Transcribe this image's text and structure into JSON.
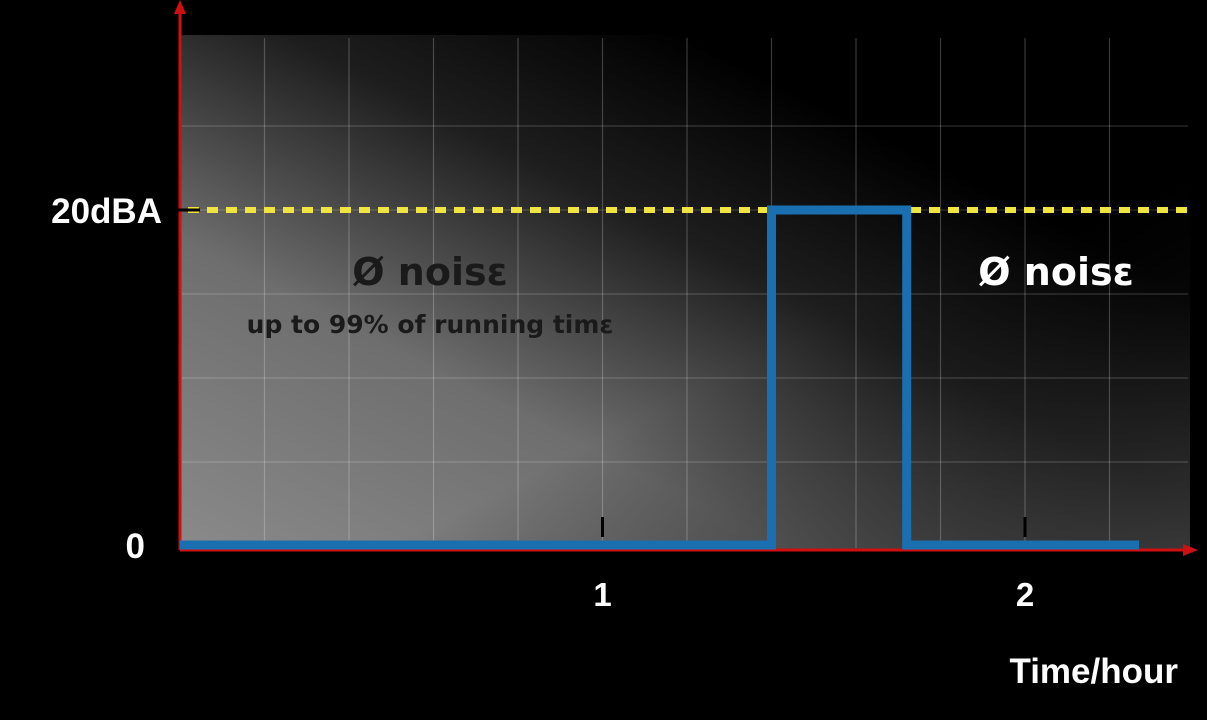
{
  "chart_data": {
    "type": "line",
    "title": "",
    "xlabel": "Time/hour",
    "ylabel": "",
    "xlim": [
      0,
      2.3
    ],
    "ylim": [
      0,
      30
    ],
    "x_ticks": [
      {
        "value": 1,
        "label": "1"
      },
      {
        "value": 2,
        "label": "2"
      }
    ],
    "y_ticks": [
      {
        "value": 0,
        "label": "0"
      },
      {
        "value": 20,
        "label": "20dBA"
      }
    ],
    "grid": true,
    "series": [
      {
        "name": "",
        "color": "#1a6fb0",
        "x": [
          0,
          1.4,
          1.4,
          1.72,
          1.72,
          2.27
        ],
        "y": [
          0,
          0,
          20,
          20,
          0,
          0
        ]
      }
    ],
    "threshold": {
      "value": 20,
      "color": "#f0e440",
      "style": "dotted"
    },
    "annotations": [
      {
        "id": "left-main",
        "text": "Ø noisε"
      },
      {
        "id": "left-sub",
        "text": "up to 99% of running timε"
      },
      {
        "id": "right-main",
        "text": "Ø noisε"
      }
    ],
    "axis_color": "#d01010"
  }
}
